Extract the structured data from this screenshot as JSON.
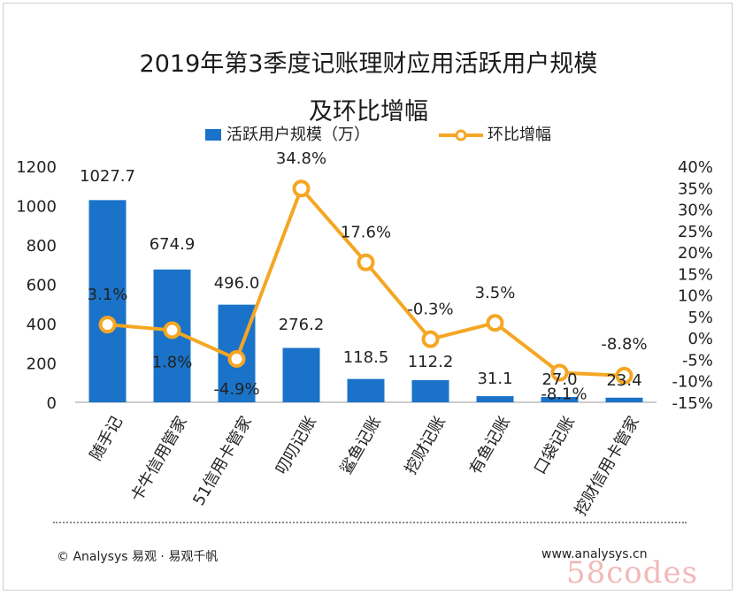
{
  "title_line1": "2019年第3季度记账理财应用活跃用户规模",
  "title_line2": "及环比增幅",
  "legend": {
    "bar": "活跃用户规模（万）",
    "line": "环比增幅"
  },
  "footer": {
    "source": "© Analysys 易观 · 易观千帆",
    "url": "www.analysys.cn"
  },
  "watermark_text": "58codes",
  "colors": {
    "bar": "#1a73c8",
    "line": "#f5a623",
    "marker_fill": "#ffffff"
  },
  "chart_data": {
    "type": "bar",
    "categories": [
      "随手记",
      "卡牛信用管家",
      "51信用卡管家",
      "叨叨记账",
      "鲨鱼记账",
      "挖财记账",
      "有鱼记账",
      "口袋记账",
      "挖财信用卡管家"
    ],
    "series": [
      {
        "name": "活跃用户规模（万）",
        "type": "bar",
        "axis": "left",
        "values": [
          1027.7,
          674.9,
          496.0,
          276.2,
          118.5,
          112.2,
          31.1,
          27.0,
          23.4
        ],
        "labels": [
          "1027.7",
          "674.9",
          "496.0",
          "276.2",
          "118.5",
          "112.2",
          "31.1",
          "27.0",
          "23.4"
        ]
      },
      {
        "name": "环比增幅",
        "type": "line",
        "axis": "right",
        "values": [
          3.1,
          1.8,
          -4.9,
          34.8,
          17.6,
          -0.3,
          3.5,
          -8.1,
          -8.8
        ],
        "labels": [
          "3.1%",
          "1.8%",
          "-4.9%",
          "34.8%",
          "17.6%",
          "-0.3%",
          "3.5%",
          "-8.1%",
          "-8.8%"
        ]
      }
    ],
    "y_left": {
      "min": 0,
      "max": 1200,
      "ticks": [
        "0",
        "200",
        "400",
        "600",
        "800",
        "1000",
        "1200"
      ]
    },
    "y_right": {
      "min": -15,
      "max": 40,
      "ticks": [
        "-15%",
        "-10%",
        "-5%",
        "0%",
        "5%",
        "10%",
        "15%",
        "20%",
        "25%",
        "30%",
        "35%",
        "40%"
      ]
    },
    "legend_position": "top",
    "grid": false
  }
}
